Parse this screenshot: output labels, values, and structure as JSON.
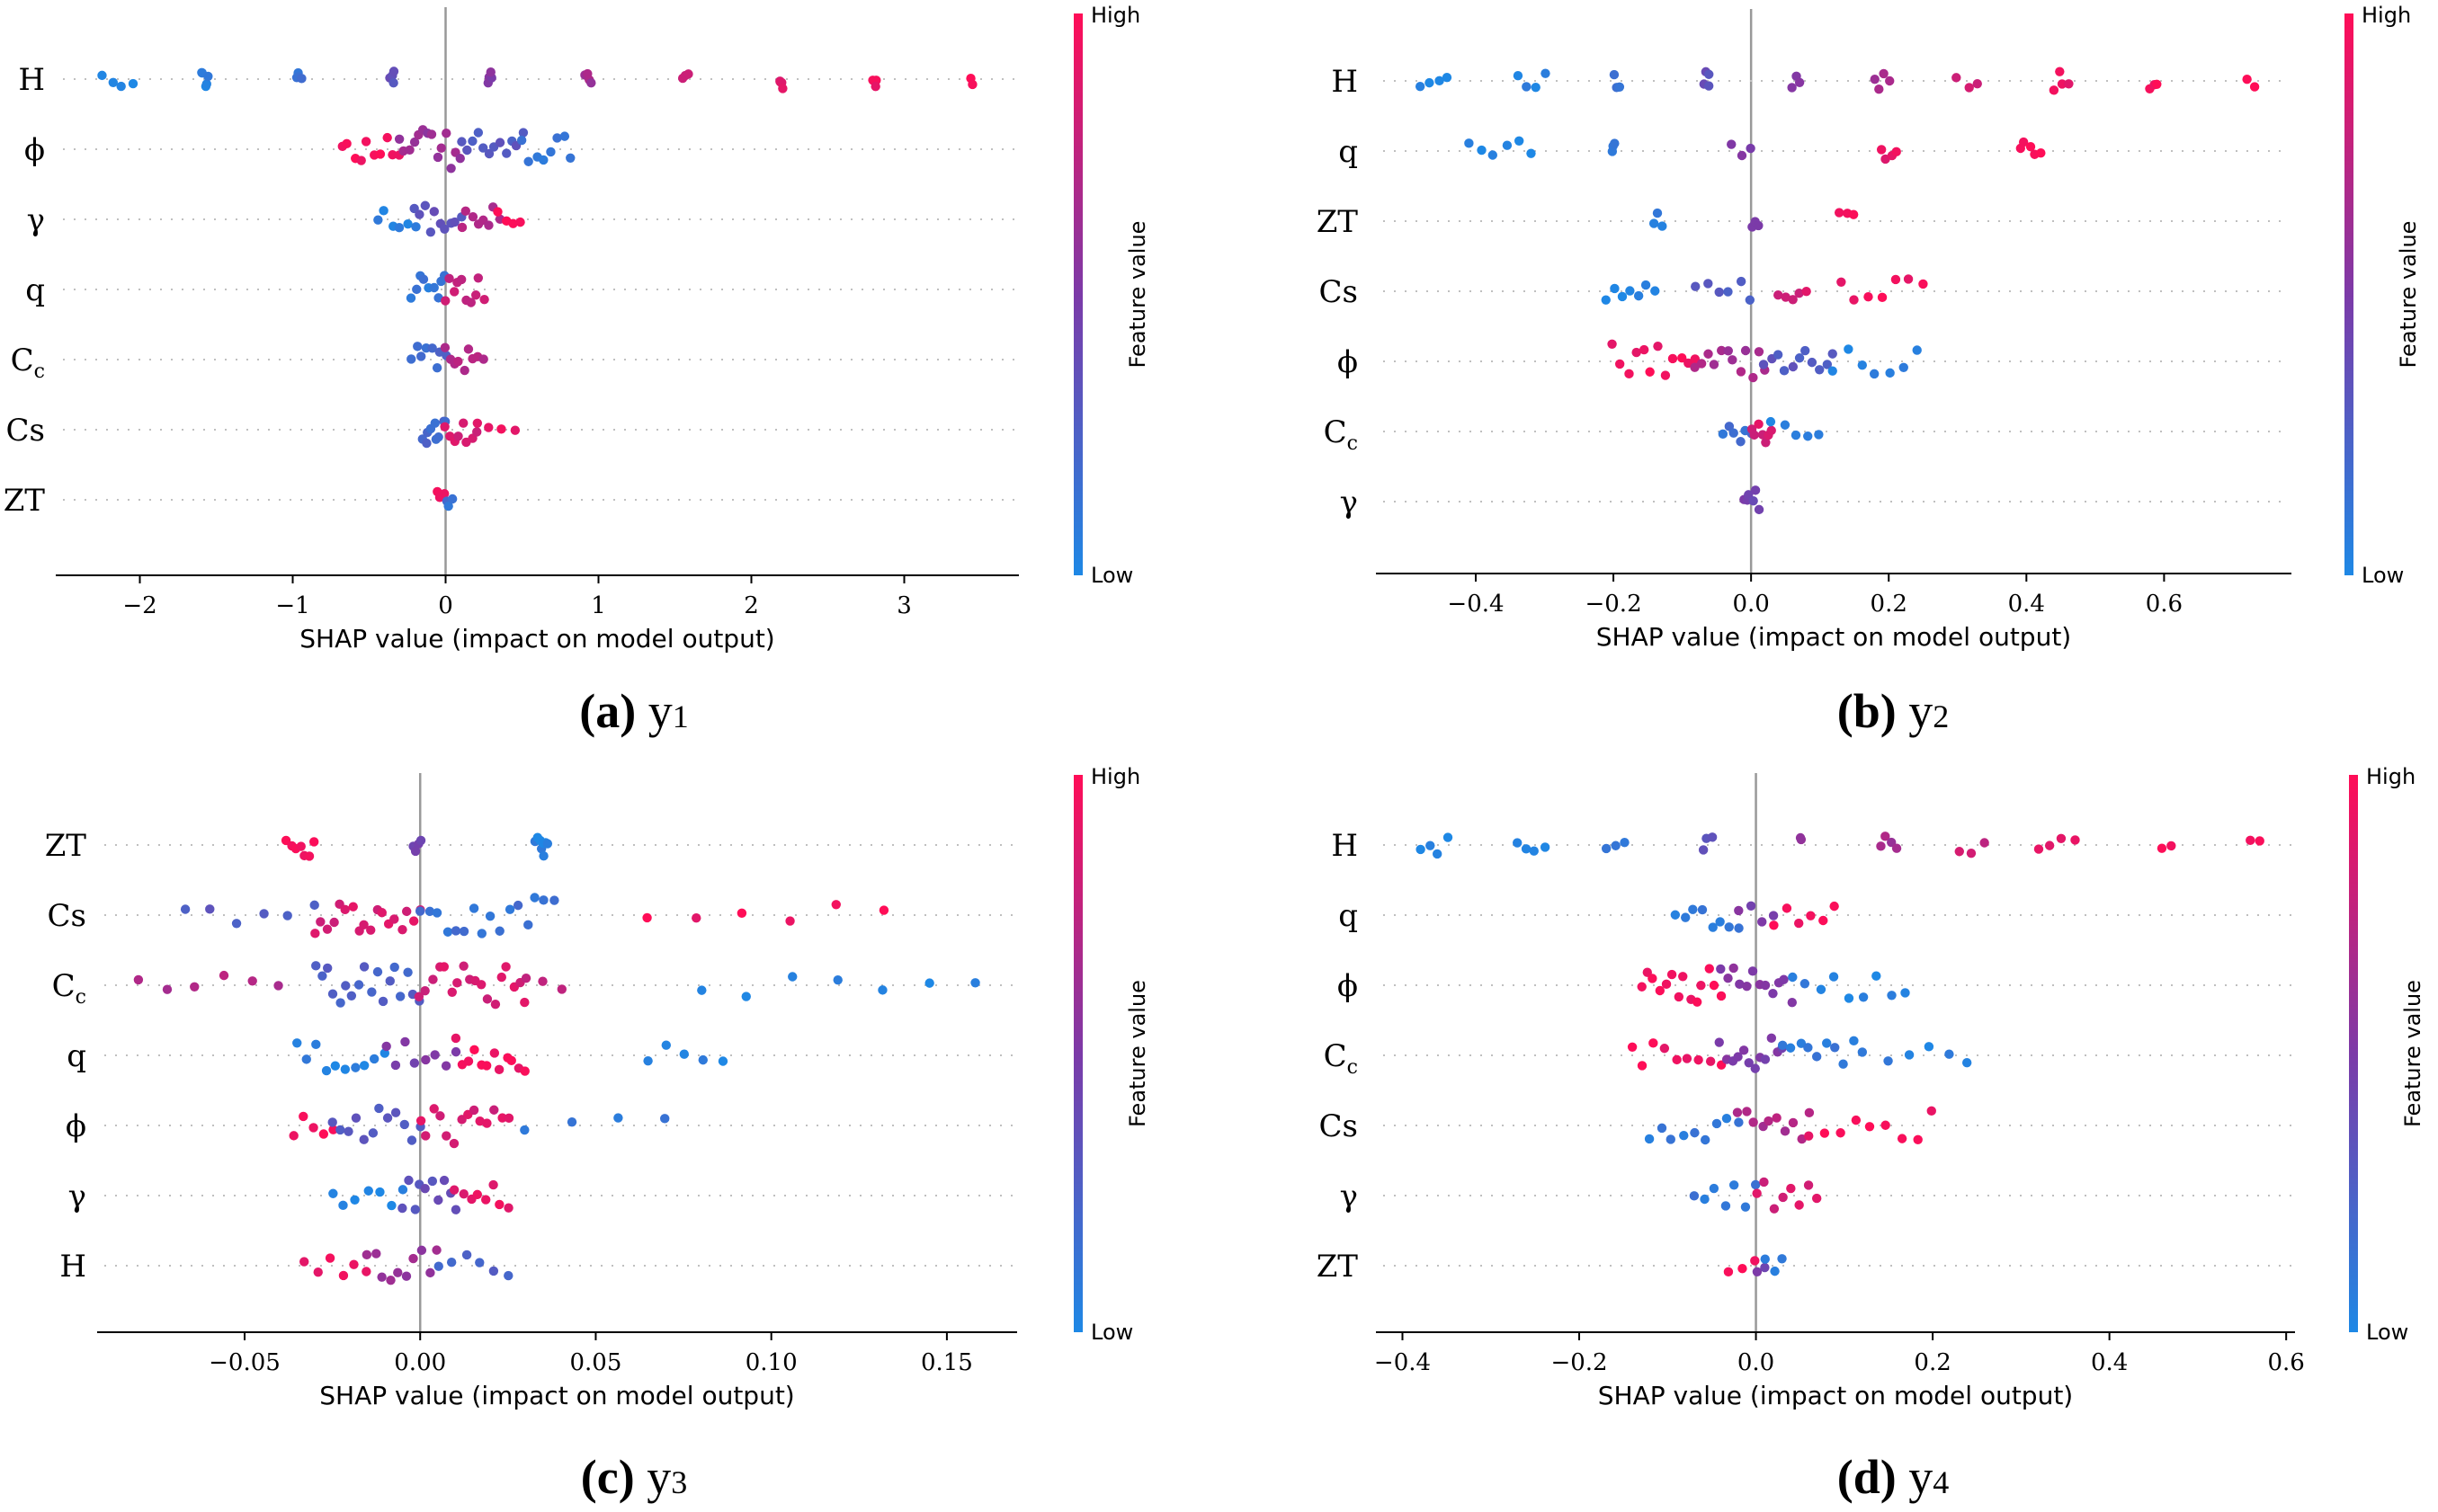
{
  "colors": {
    "low": "#1e88e5",
    "high": "#ff0d57",
    "mid": "#7c3aa8",
    "axis": "#000000",
    "zero_line": "#999999",
    "grid": "#bfbfbf"
  },
  "colorbar": {
    "high_label": "High",
    "low_label": "Low",
    "title": "Feature value"
  },
  "chart_data": [
    {
      "panel": "a",
      "type": "scatter",
      "variant": "shap-beeswarm",
      "caption_letter": "(a)",
      "caption_text": "y1",
      "caption_main": "y",
      "caption_sub": "1",
      "xlabel": "SHAP value (impact on model output)",
      "ylabel": "",
      "xlim": [
        -2.55,
        3.75
      ],
      "xticks": [
        -2,
        -1,
        0,
        1,
        2,
        3
      ],
      "xtick_labels": [
        "−2",
        "−1",
        "0",
        "1",
        "2",
        "3"
      ],
      "features": [
        {
          "name": "H",
          "clusters": [
            [
              -2.25,
              -2.05,
              4,
              0.0
            ],
            [
              -1.6,
              -1.55,
              5,
              0.05
            ],
            [
              -0.98,
              -0.95,
              4,
              0.15
            ],
            [
              -0.36,
              -0.34,
              4,
              0.35
            ],
            [
              0.28,
              0.3,
              4,
              0.55
            ],
            [
              0.92,
              0.95,
              4,
              0.65
            ],
            [
              1.55,
              1.58,
              3,
              0.8
            ],
            [
              2.18,
              2.2,
              4,
              0.9
            ],
            [
              2.8,
              2.82,
              3,
              0.95
            ],
            [
              3.44,
              3.45,
              2,
              1.0
            ]
          ]
        },
        {
          "name": "ϕ",
          "clusters": [
            [
              -0.68,
              -0.3,
              10,
              0.95
            ],
            [
              -0.3,
              0.1,
              14,
              0.6
            ],
            [
              0.1,
              0.5,
              12,
              0.3
            ],
            [
              0.5,
              0.82,
              8,
              0.1
            ]
          ]
        },
        {
          "name": "γ",
          "clusters": [
            [
              -0.45,
              -0.2,
              6,
              0.05
            ],
            [
              -0.2,
              0.1,
              10,
              0.35
            ],
            [
              0.1,
              0.35,
              8,
              0.7
            ],
            [
              0.35,
              0.48,
              4,
              0.95
            ]
          ]
        },
        {
          "name": "q",
          "clusters": [
            [
              -0.22,
              0.0,
              9,
              0.1
            ],
            [
              0.0,
              0.25,
              10,
              0.8
            ]
          ]
        },
        {
          "name": "Cc",
          "clusters": [
            [
              -0.22,
              0.0,
              8,
              0.2
            ],
            [
              0.0,
              0.24,
              9,
              0.7
            ]
          ]
        },
        {
          "name": "Cs",
          "clusters": [
            [
              -0.15,
              0.0,
              9,
              0.2
            ],
            [
              0.0,
              0.2,
              8,
              0.85
            ],
            [
              0.2,
              0.45,
              4,
              0.95
            ]
          ]
        },
        {
          "name": "ZT",
          "clusters": [
            [
              -0.06,
              0.0,
              3,
              0.95
            ],
            [
              0.0,
              0.04,
              3,
              0.15
            ]
          ]
        }
      ]
    },
    {
      "panel": "b",
      "type": "scatter",
      "variant": "shap-beeswarm",
      "caption_letter": "(b)",
      "caption_text": "y2",
      "caption_main": "y",
      "caption_sub": "2",
      "xlabel": "SHAP value (impact on model output)",
      "ylabel": "",
      "xlim": [
        -0.545,
        0.785
      ],
      "xticks": [
        -0.4,
        -0.2,
        0.0,
        0.2,
        0.4,
        0.6
      ],
      "xtick_labels": [
        "−0.4",
        "−0.2",
        "0.0",
        "0.2",
        "0.4",
        "0.6"
      ],
      "features": [
        {
          "name": "H",
          "clusters": [
            [
              -0.48,
              -0.44,
              4,
              0.0
            ],
            [
              -0.34,
              -0.3,
              4,
              0.05
            ],
            [
              -0.2,
              -0.19,
              3,
              0.15
            ],
            [
              -0.07,
              -0.06,
              4,
              0.35
            ],
            [
              0.06,
              0.07,
              3,
              0.55
            ],
            [
              0.18,
              0.2,
              4,
              0.65
            ],
            [
              0.3,
              0.33,
              3,
              0.8
            ],
            [
              0.44,
              0.46,
              4,
              0.9
            ],
            [
              0.58,
              0.59,
              3,
              0.95
            ],
            [
              0.72,
              0.73,
              2,
              1.0
            ]
          ]
        },
        {
          "name": "q",
          "clusters": [
            [
              -0.41,
              -0.32,
              6,
              0.0
            ],
            [
              -0.2,
              -0.2,
              3,
              0.1
            ],
            [
              -0.03,
              0.0,
              3,
              0.5
            ],
            [
              0.19,
              0.21,
              4,
              0.9
            ],
            [
              0.39,
              0.42,
              5,
              1.0
            ]
          ]
        },
        {
          "name": "ZT",
          "clusters": [
            [
              -0.14,
              -0.13,
              3,
              0.05
            ],
            [
              0.0,
              0.01,
              3,
              0.45
            ],
            [
              0.13,
              0.15,
              3,
              0.95
            ]
          ]
        },
        {
          "name": "Cs",
          "clusters": [
            [
              -0.21,
              -0.14,
              7,
              0.05
            ],
            [
              -0.08,
              0.0,
              6,
              0.3
            ],
            [
              0.04,
              0.08,
              5,
              0.85
            ],
            [
              0.13,
              0.25,
              7,
              0.95
            ]
          ]
        },
        {
          "name": "ϕ",
          "clusters": [
            [
              -0.2,
              -0.08,
              12,
              0.95
            ],
            [
              -0.08,
              0.02,
              12,
              0.65
            ],
            [
              0.02,
              0.12,
              11,
              0.3
            ],
            [
              0.12,
              0.24,
              7,
              0.05
            ]
          ]
        },
        {
          "name": "Cc",
          "clusters": [
            [
              -0.04,
              0.0,
              6,
              0.15
            ],
            [
              0.0,
              0.03,
              7,
              0.85
            ],
            [
              0.03,
              0.1,
              5,
              0.05
            ]
          ]
        },
        {
          "name": "γ",
          "clusters": [
            [
              -0.01,
              0.01,
              6,
              0.45
            ]
          ]
        }
      ]
    },
    {
      "panel": "c",
      "type": "scatter",
      "variant": "shap-beeswarm",
      "caption_letter": "(c)",
      "caption_text": "y3",
      "caption_main": "y",
      "caption_sub": "3",
      "xlabel": "SHAP value (impact on model output)",
      "ylabel": "",
      "xlim": [
        -0.092,
        0.17
      ],
      "xticks": [
        -0.05,
        0.0,
        0.05,
        0.1,
        0.15
      ],
      "xtick_labels": [
        "−0.05",
        "0.00",
        "0.05",
        "0.10",
        "0.15"
      ],
      "features": [
        {
          "name": "ZT",
          "clusters": [
            [
              -0.038,
              -0.03,
              7,
              0.95
            ],
            [
              -0.002,
              0.0,
              4,
              0.45
            ],
            [
              0.033,
              0.036,
              8,
              0.05
            ]
          ]
        },
        {
          "name": "Cs",
          "clusters": [
            [
              -0.067,
              -0.03,
              6,
              0.3
            ],
            [
              -0.03,
              0.0,
              18,
              0.85
            ],
            [
              0.0,
              0.038,
              16,
              0.15
            ],
            [
              0.065,
              0.132,
              6,
              0.95
            ]
          ]
        },
        {
          "name": "Cc",
          "clusters": [
            [
              -0.08,
              -0.04,
              6,
              0.7
            ],
            [
              -0.03,
              0.0,
              18,
              0.25
            ],
            [
              0.0,
              0.03,
              18,
              0.85
            ],
            [
              0.03,
              0.04,
              3,
              0.7
            ],
            [
              0.08,
              0.158,
              7,
              0.05
            ]
          ]
        },
        {
          "name": "q",
          "clusters": [
            [
              -0.035,
              -0.01,
              10,
              0.05
            ],
            [
              -0.01,
              0.01,
              8,
              0.5
            ],
            [
              0.01,
              0.03,
              12,
              0.95
            ],
            [
              0.065,
              0.086,
              5,
              0.05
            ]
          ]
        },
        {
          "name": "ϕ",
          "clusters": [
            [
              -0.036,
              -0.025,
              5,
              0.95
            ],
            [
              -0.025,
              0.0,
              12,
              0.3
            ],
            [
              0.0,
              0.025,
              14,
              0.85
            ],
            [
              0.03,
              0.07,
              4,
              0.1
            ]
          ]
        },
        {
          "name": "γ",
          "clusters": [
            [
              -0.025,
              -0.005,
              7,
              0.05
            ],
            [
              -0.005,
              0.01,
              10,
              0.35
            ],
            [
              0.01,
              0.025,
              8,
              0.9
            ]
          ]
        },
        {
          "name": "H",
          "clusters": [
            [
              -0.033,
              -0.015,
              6,
              0.95
            ],
            [
              -0.015,
              0.005,
              10,
              0.6
            ],
            [
              0.005,
              0.025,
              6,
              0.25
            ]
          ]
        }
      ]
    },
    {
      "panel": "d",
      "type": "scatter",
      "variant": "shap-beeswarm",
      "caption_letter": "(d)",
      "caption_text": "y4",
      "caption_main": "y",
      "caption_sub": "4",
      "xlabel": "SHAP value (impact on model output)",
      "ylabel": "",
      "xlim": [
        -0.43,
        0.61
      ],
      "xticks": [
        -0.4,
        -0.2,
        0.0,
        0.2,
        0.4,
        0.6
      ],
      "xtick_labels": [
        "−0.4",
        "−0.2",
        "0.0",
        "0.2",
        "0.4",
        "0.6"
      ],
      "features": [
        {
          "name": "H",
          "clusters": [
            [
              -0.38,
              -0.35,
              4,
              0.0
            ],
            [
              -0.27,
              -0.24,
              4,
              0.05
            ],
            [
              -0.17,
              -0.15,
              3,
              0.15
            ],
            [
              -0.06,
              -0.05,
              3,
              0.35
            ],
            [
              0.05,
              0.05,
              2,
              0.55
            ],
            [
              0.14,
              0.16,
              4,
              0.65
            ],
            [
              0.23,
              0.26,
              3,
              0.8
            ],
            [
              0.32,
              0.36,
              4,
              0.9
            ],
            [
              0.46,
              0.47,
              2,
              0.95
            ],
            [
              0.56,
              0.57,
              2,
              1.0
            ]
          ]
        },
        {
          "name": "q",
          "clusters": [
            [
              -0.09,
              -0.02,
              8,
              0.1
            ],
            [
              -0.02,
              0.02,
              4,
              0.5
            ],
            [
              0.02,
              0.09,
              6,
              0.95
            ]
          ]
        },
        {
          "name": "ϕ",
          "clusters": [
            [
              -0.13,
              -0.04,
              14,
              0.95
            ],
            [
              -0.04,
              0.04,
              12,
              0.55
            ],
            [
              0.04,
              0.17,
              9,
              0.05
            ]
          ]
        },
        {
          "name": "Cc",
          "clusters": [
            [
              -0.14,
              -0.04,
              9,
              0.95
            ],
            [
              -0.04,
              0.03,
              12,
              0.5
            ],
            [
              0.03,
              0.12,
              10,
              0.1
            ],
            [
              0.15,
              0.24,
              5,
              0.05
            ]
          ]
        },
        {
          "name": "Cs",
          "clusters": [
            [
              -0.12,
              -0.02,
              9,
              0.1
            ],
            [
              -0.02,
              0.06,
              10,
              0.7
            ],
            [
              0.06,
              0.2,
              9,
              0.95
            ]
          ]
        },
        {
          "name": "γ",
          "clusters": [
            [
              -0.07,
              0.0,
              7,
              0.1
            ],
            [
              0.0,
              0.07,
              8,
              0.85
            ]
          ]
        },
        {
          "name": "ZT",
          "clusters": [
            [
              -0.03,
              0.0,
              3,
              0.95
            ],
            [
              0.0,
              0.01,
              2,
              0.45
            ],
            [
              0.01,
              0.03,
              3,
              0.05
            ]
          ]
        }
      ]
    }
  ]
}
